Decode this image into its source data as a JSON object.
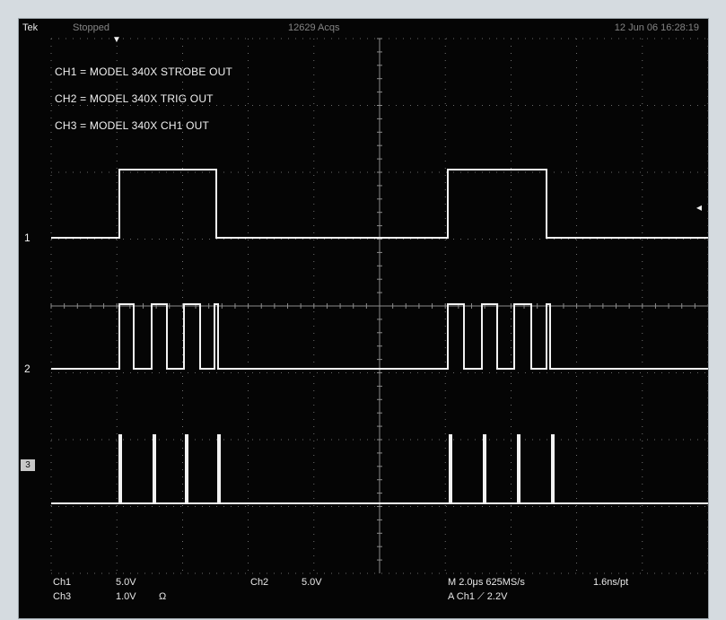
{
  "header": {
    "brand": "Tek",
    "status": "Stopped",
    "acquisitions": "12629 Acqs",
    "datetime": "12 Jun 06 16:28:19"
  },
  "legend": [
    "CH1 = MODEL 340X STROBE OUT",
    "CH2 = MODEL 340X TRIG OUT",
    "CH3 = MODEL 340X CH1 OUT"
  ],
  "channel_markers": {
    "ch1": "1",
    "ch2": "2",
    "ch3": "3"
  },
  "footer": {
    "ch1_name": "Ch1",
    "ch1_scale": "5.0V",
    "ch2_name": "Ch2",
    "ch2_scale": "5.0V",
    "ch3_name": "Ch3",
    "ch3_scale": "1.0V",
    "ch3_coupling": "Ω",
    "timebase": "M 2.0μs 625MS/s",
    "resolution": "1.6ns/pt",
    "trigger": "A  Ch1  ⟋  2.2V"
  },
  "colors": {
    "screen_bg": "#050505",
    "trace": "#f2f2f2",
    "grid": "#8a8a8a"
  }
}
